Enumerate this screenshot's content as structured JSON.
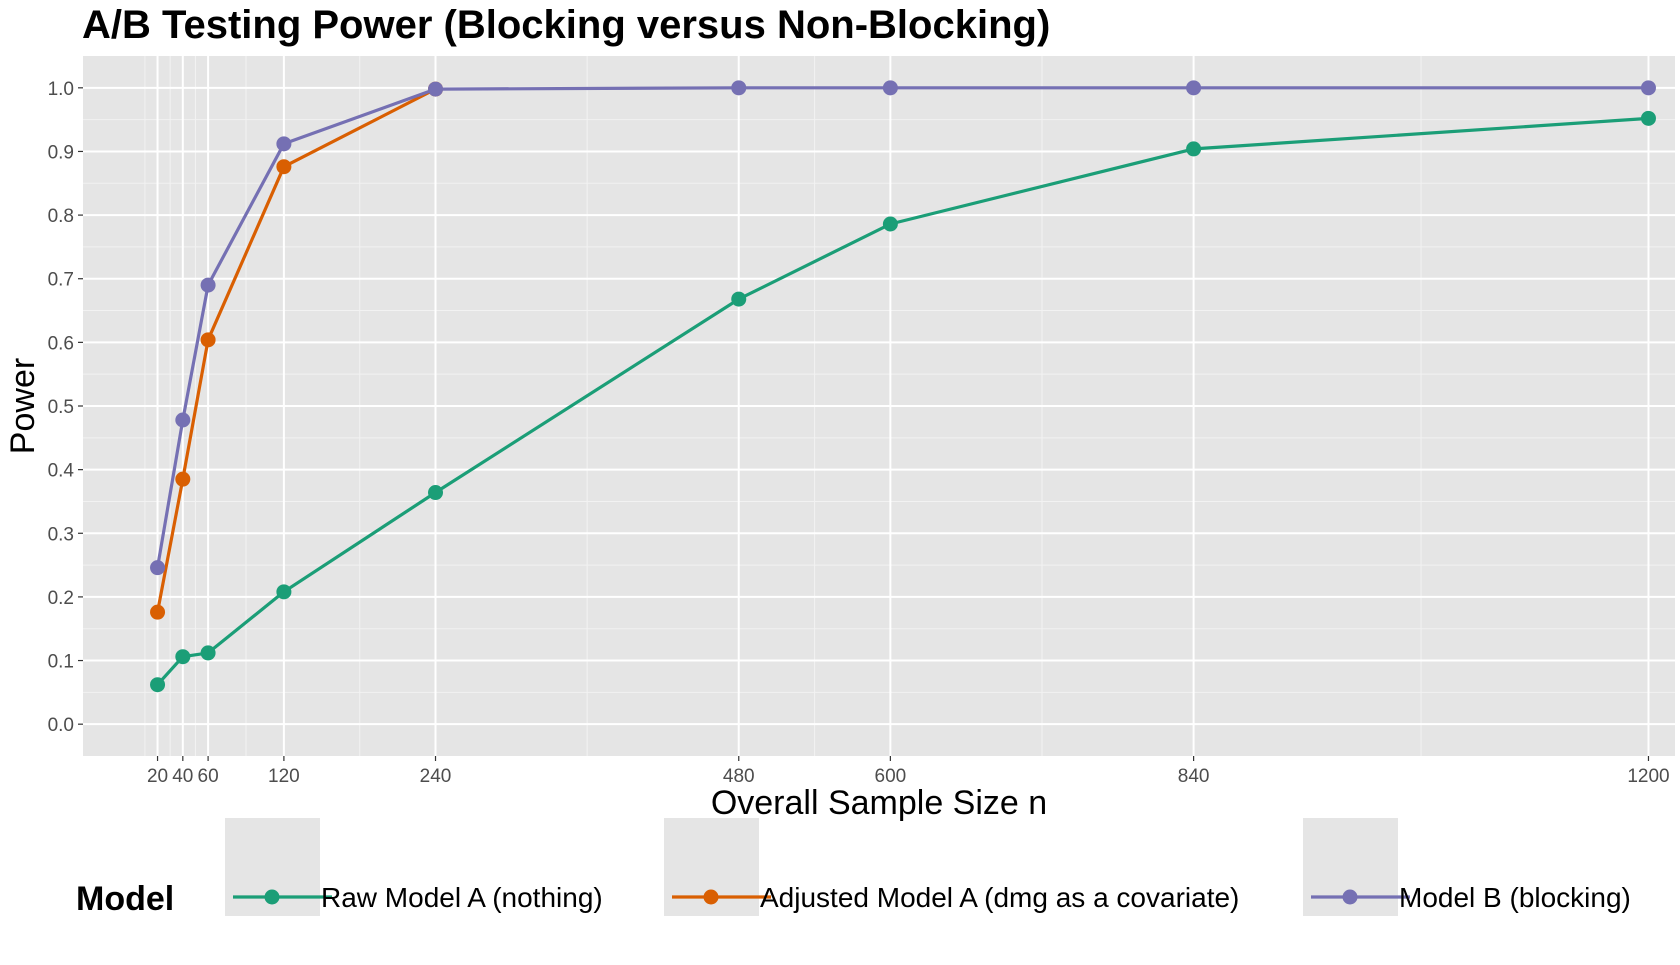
{
  "chart_data": {
    "type": "line",
    "title": "A/B Testing Power (Blocking versus Non-Blocking)",
    "xlabel": "Overall Sample Size n",
    "ylabel": "Power",
    "x": [
      20,
      40,
      60,
      120,
      240,
      480,
      600,
      840,
      1200
    ],
    "x_tick_labels": [
      "20",
      "40",
      "60",
      "120",
      "240",
      "480",
      "600",
      "840",
      "1200"
    ],
    "y_ticks": [
      0.0,
      0.1,
      0.2,
      0.3,
      0.4,
      0.5,
      0.6,
      0.7,
      0.8,
      0.9,
      1.0
    ],
    "y_tick_labels": [
      "0.0",
      "0.1",
      "0.2",
      "0.3",
      "0.4",
      "0.5",
      "0.6",
      "0.7",
      "0.8",
      "0.9",
      "1.0"
    ],
    "xlim": [
      -39,
      1221
    ],
    "ylim": [
      -0.05,
      1.05
    ],
    "grid": true,
    "legend_title": "Model",
    "legend_position": "bottom",
    "series": [
      {
        "name": "Raw Model A (nothing)",
        "color": "#1b9e77",
        "x": [
          20,
          40,
          60,
          120,
          240,
          480,
          600,
          840,
          1200
        ],
        "values": [
          0.062,
          0.106,
          0.112,
          0.208,
          0.364,
          0.668,
          0.786,
          0.904,
          0.952
        ]
      },
      {
        "name": "Adjusted Model A (dmg as a covariate)",
        "color": "#d95f02",
        "x": [
          20,
          40,
          60,
          120,
          240
        ],
        "values": [
          0.176,
          0.385,
          0.604,
          0.876,
          0.998
        ]
      },
      {
        "name": "Model B (blocking)",
        "color": "#7570b3",
        "x": [
          20,
          40,
          60,
          120,
          240,
          480,
          600,
          840,
          1200
        ],
        "values": [
          0.246,
          0.478,
          0.69,
          0.912,
          0.998,
          1.0,
          1.0,
          1.0,
          1.0
        ]
      }
    ]
  }
}
